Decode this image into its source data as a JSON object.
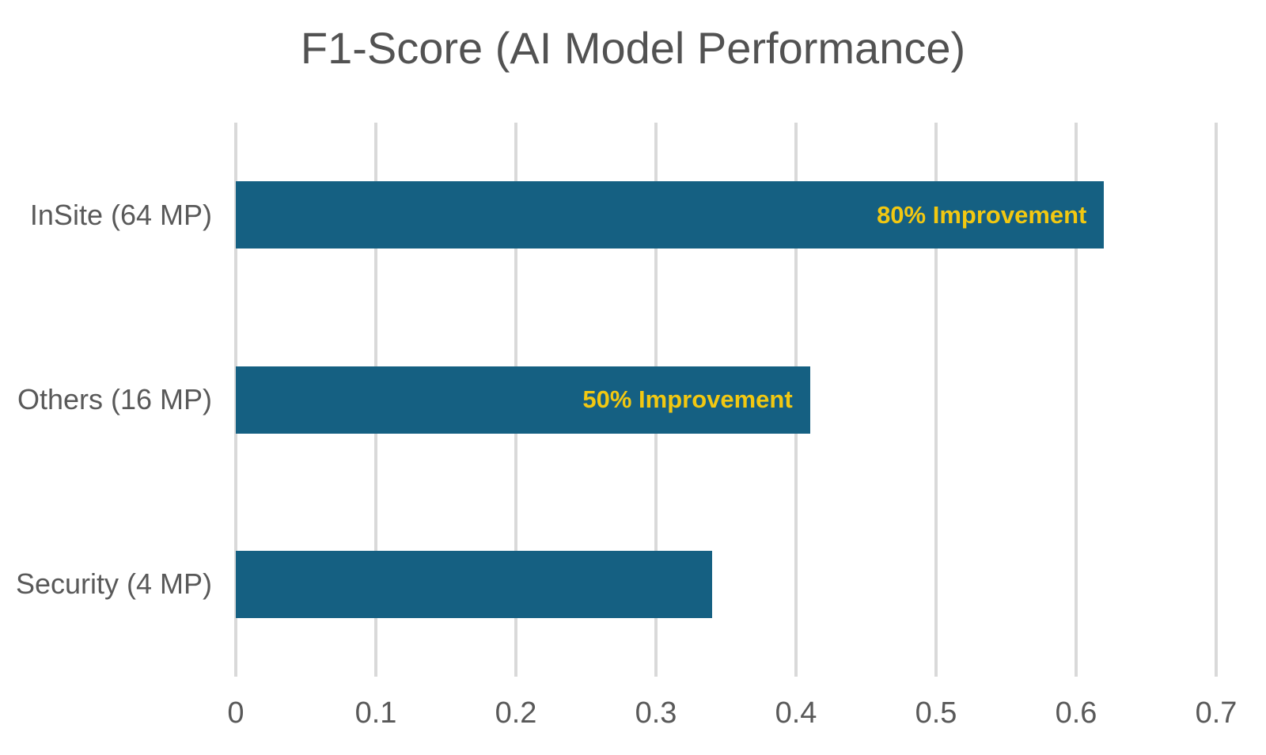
{
  "chart_data": {
    "type": "bar",
    "orientation": "horizontal",
    "title": "F1-Score (AI Model Performance)",
    "categories": [
      "InSite (64 MP)",
      "Others (16 MP)",
      "Security (4 MP)"
    ],
    "values": [
      0.62,
      0.41,
      0.34
    ],
    "bar_labels": [
      "80% Improvement",
      "50% Improvement",
      ""
    ],
    "xlim": [
      0,
      0.7
    ],
    "x_ticks": [
      "0",
      "0.1",
      "0.2",
      "0.3",
      "0.4",
      "0.5",
      "0.6",
      "0.7"
    ],
    "grid": true,
    "legend": false,
    "xlabel": "",
    "ylabel": "",
    "colors": {
      "bar": "#156082",
      "bar_label": "#F2C811",
      "grid": "#D9D9D9",
      "title": "#525252",
      "axis_text": "#595959",
      "background": "#FFFFFF"
    }
  }
}
